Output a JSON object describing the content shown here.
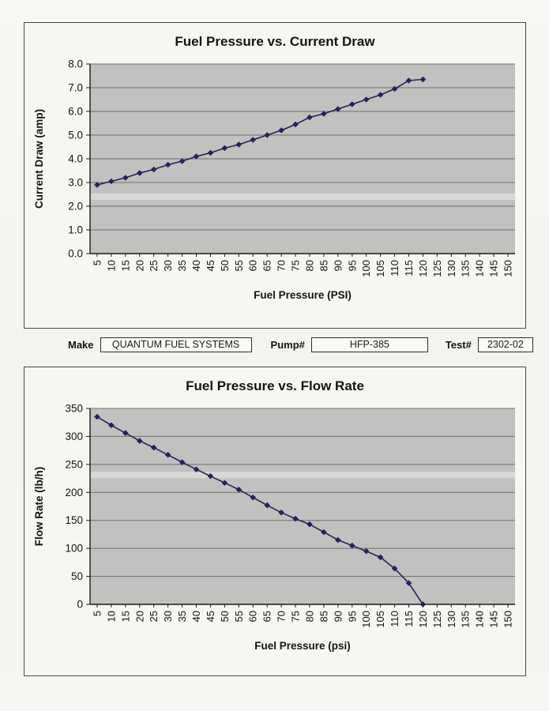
{
  "form": {
    "make_label": "Make",
    "make_value": "QUANTUM FUEL SYSTEMS",
    "pump_label": "Pump#",
    "pump_value": "HFP-385",
    "test_label": "Test#",
    "test_value": "2302-02"
  },
  "chart_data": [
    {
      "type": "line",
      "title": "Fuel Pressure vs. Current Draw",
      "xlabel": "Fuel Pressure (PSI)",
      "ylabel": "Current Draw (amp)",
      "categories": [
        5,
        10,
        15,
        20,
        25,
        30,
        35,
        40,
        45,
        50,
        55,
        60,
        65,
        70,
        75,
        80,
        85,
        90,
        95,
        100,
        105,
        110,
        115,
        120,
        125,
        130,
        135,
        140,
        145,
        150
      ],
      "values": [
        2.9,
        3.05,
        3.2,
        3.4,
        3.55,
        3.75,
        3.9,
        4.1,
        4.25,
        4.45,
        4.6,
        4.8,
        5.0,
        5.2,
        5.45,
        5.75,
        5.9,
        6.1,
        6.3,
        6.5,
        6.7,
        6.95,
        7.3,
        7.35
      ],
      "ylim": [
        0,
        8
      ],
      "y_step": 1,
      "y_decimals": 1,
      "grid": true,
      "legend": "none",
      "marker": "diamond",
      "plot_bg": "#c2c1bf",
      "grid_color": "#6f6e6c",
      "axis_color": "#1a1a1a",
      "line_color": "#23235c"
    },
    {
      "type": "line",
      "title": "Fuel Pressure vs. Flow Rate",
      "xlabel": "Fuel Pressure (psi)",
      "ylabel": "Flow Rate (lb/h)",
      "categories": [
        5,
        10,
        15,
        20,
        25,
        30,
        35,
        40,
        45,
        50,
        55,
        60,
        65,
        70,
        75,
        80,
        85,
        90,
        95,
        100,
        105,
        110,
        115,
        120,
        125,
        130,
        135,
        140,
        145,
        150
      ],
      "values": [
        335,
        320,
        306,
        292,
        280,
        267,
        254,
        241,
        229,
        217,
        205,
        191,
        177,
        164,
        153,
        143,
        129,
        115,
        105,
        95,
        84,
        64,
        38,
        0
      ],
      "ylim": [
        0,
        350
      ],
      "y_step": 50,
      "y_decimals": 0,
      "grid": true,
      "legend": "none",
      "marker": "diamond",
      "plot_bg": "#c2c1bf",
      "grid_color": "#6f6e6c",
      "axis_color": "#1a1a1a",
      "line_color": "#23235c"
    }
  ]
}
